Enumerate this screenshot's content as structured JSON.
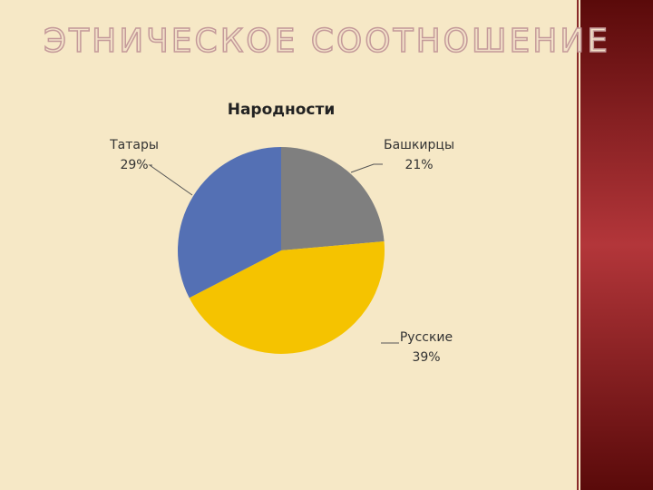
{
  "slide_title": "ЭТНИЧЕСКОЕ СООТНОШЕНИЕ",
  "chart_data": {
    "type": "pie",
    "title": "Народности",
    "categories": [
      "Башкирцы",
      "Русские",
      "Татары"
    ],
    "values": [
      21,
      39,
      29
    ],
    "value_labels": [
      "21%",
      "39%",
      "29%"
    ],
    "colors": [
      "#7f7f7f",
      "#f5c300",
      "#5470b4"
    ]
  }
}
